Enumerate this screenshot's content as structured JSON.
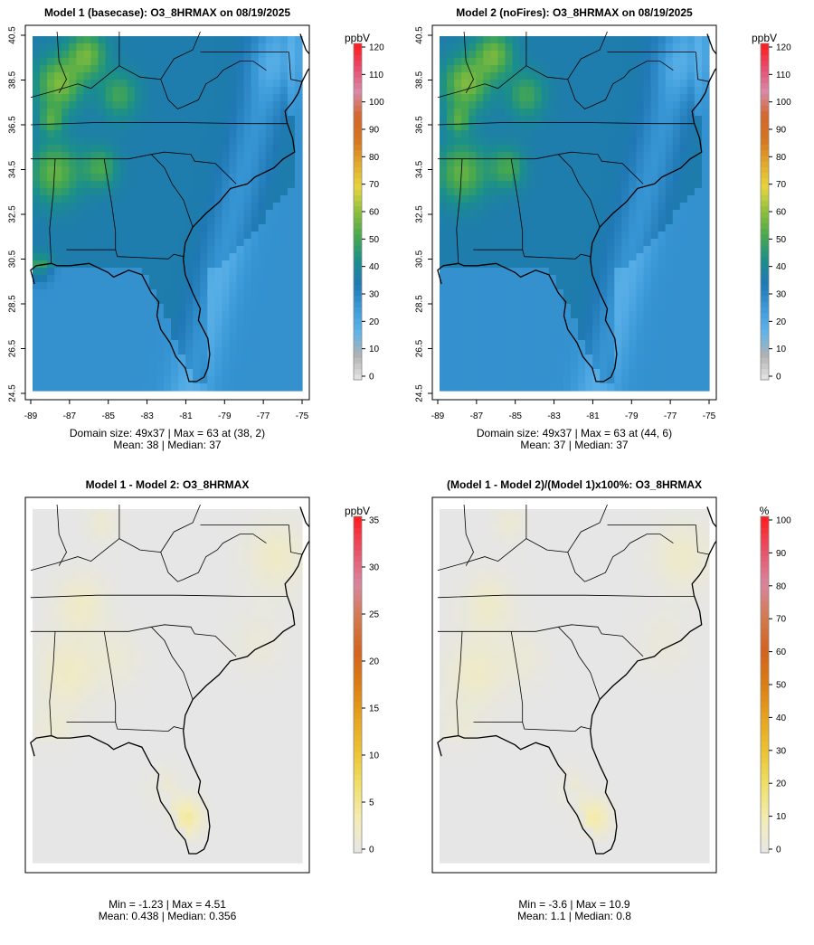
{
  "chart_data": [
    {
      "type": "heatmap",
      "title": "Model 1 (basecase): O3_8HRMAX on 08/19/2025",
      "x_ticks": [
        "-89",
        "-87",
        "-85",
        "-83",
        "-81",
        "-79",
        "-77",
        "-75"
      ],
      "y_ticks": [
        "24.5",
        "26.5",
        "28.5",
        "30.5",
        "32.5",
        "34.5",
        "36.5",
        "38.5",
        "40.5"
      ],
      "legend": {
        "unit": "ppbV",
        "ticks": [
          "0",
          "10",
          "20",
          "30",
          "40",
          "50",
          "60",
          "70",
          "80",
          "90",
          "100",
          "110",
          "120"
        ],
        "max": 120,
        "colors": [
          "#e6e6e6",
          "#b2b2b2",
          "#5fb4ea",
          "#3c9ad8",
          "#1f78b4",
          "#1b8f8a",
          "#47a84e",
          "#8cbf3a",
          "#e6d53c",
          "#e2a92a",
          "#d6751e",
          "#d2672c",
          "#d98aa8",
          "#e84b6e",
          "#ff1a1a"
        ]
      },
      "caption": [
        "Domain size: 49x37 | Max = 63 at (38, 2)",
        "Mean: 38 |  Median: 37"
      ]
    },
    {
      "type": "heatmap",
      "title": "Model 2 (noFires): O3_8HRMAX on 08/19/2025",
      "x_ticks": [
        "-89",
        "-87",
        "-85",
        "-83",
        "-81",
        "-79",
        "-77",
        "-75"
      ],
      "y_ticks": [
        "24.5",
        "26.5",
        "28.5",
        "30.5",
        "32.5",
        "34.5",
        "36.5",
        "38.5",
        "40.5"
      ],
      "legend": {
        "unit": "ppbV",
        "ticks": [
          "0",
          "10",
          "20",
          "30",
          "40",
          "50",
          "60",
          "70",
          "80",
          "90",
          "100",
          "110",
          "120"
        ],
        "max": 120,
        "colors": [
          "#e6e6e6",
          "#b2b2b2",
          "#5fb4ea",
          "#3c9ad8",
          "#1f78b4",
          "#1b8f8a",
          "#47a84e",
          "#8cbf3a",
          "#e6d53c",
          "#e2a92a",
          "#d6751e",
          "#d2672c",
          "#d98aa8",
          "#e84b6e",
          "#ff1a1a"
        ]
      },
      "caption": [
        "Domain size: 49x37 | Max = 63 at (44, 6)",
        "Mean: 37 |  Median: 37"
      ]
    },
    {
      "type": "heatmap",
      "title": "Model 1 - Model 2: O3_8HRMAX",
      "x_ticks": [],
      "y_ticks": [],
      "legend": {
        "unit": "ppbV",
        "ticks": [
          "0",
          "5",
          "10",
          "15",
          "20",
          "25",
          "30",
          "35"
        ],
        "max": 35,
        "colors": [
          "#e6e6e6",
          "#f3ecb6",
          "#f0e06a",
          "#ecc432",
          "#e6a41e",
          "#dc7e12",
          "#d4621e",
          "#d27a4e",
          "#d9869e",
          "#e85068",
          "#ff1a1a"
        ]
      },
      "caption": [
        "Min = -1.23 | Max = 4.51",
        "Mean: 0.438 |  Median: 0.356"
      ]
    },
    {
      "type": "heatmap",
      "title": "(Model 1 - Model 2)/(Model 1)x100%: O3_8HRMAX",
      "x_ticks": [],
      "y_ticks": [],
      "legend": {
        "unit": "%",
        "ticks": [
          "0",
          "10",
          "20",
          "30",
          "40",
          "50",
          "60",
          "70",
          "80",
          "90",
          "100"
        ],
        "max": 100,
        "colors": [
          "#e6e6e6",
          "#f3ecb6",
          "#f0e06a",
          "#ecc432",
          "#e6a41e",
          "#dc7e12",
          "#d4621e",
          "#d27a4e",
          "#d9869e",
          "#e85068",
          "#ff1a1a"
        ]
      },
      "caption": [
        "Min = -3.6 | Max = 10.9",
        "Mean: 1.1 |  Median: 0.8"
      ]
    }
  ]
}
